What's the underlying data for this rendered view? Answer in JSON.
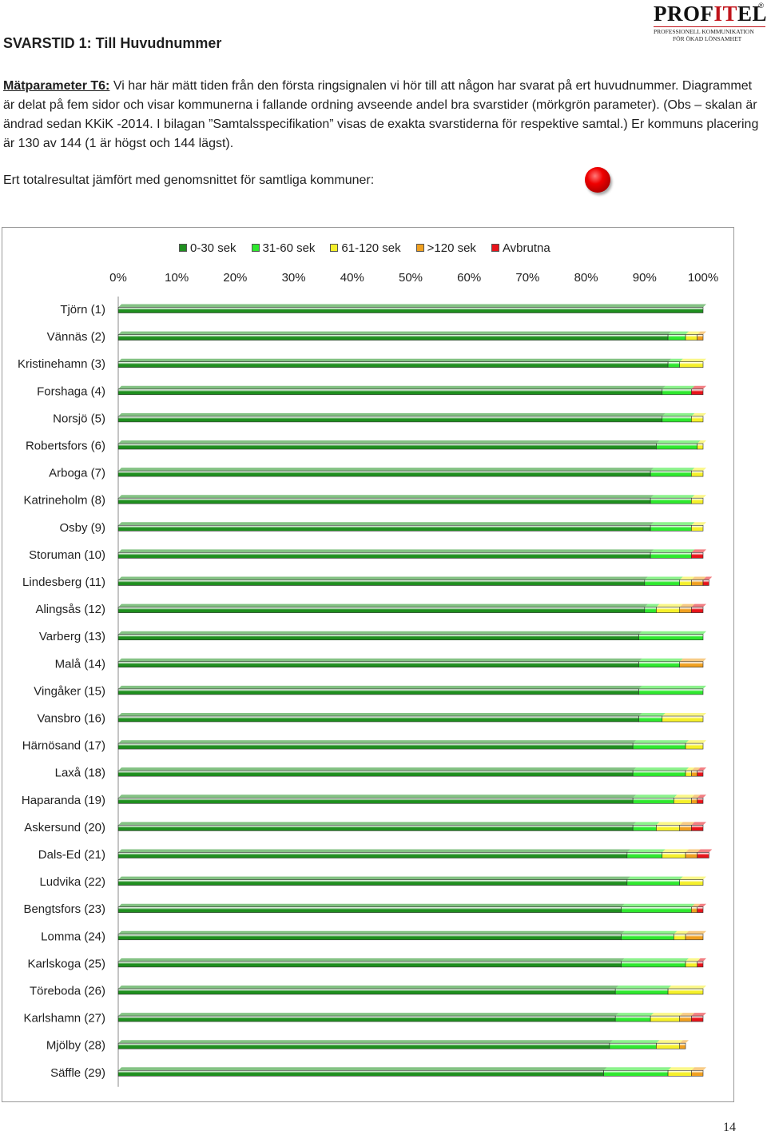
{
  "header": {
    "title": "SVARSTID 1: Till Huvudnummer"
  },
  "logo": {
    "part1": "PROF",
    "part2": "IT",
    "part3": "EL",
    "registered": "®",
    "tagline1": "PROFESSIONELL KOMMUNIKATION",
    "tagline2": "FÖR ÖKAD LÖNSAMHET"
  },
  "intro": {
    "param_label": "Mätparameter T6:",
    "text": " Vi har här mätt tiden från den första ringsignalen vi hör till att någon har svarat på ert huvudnummer. Diagrammet är delat på fem sidor och visar kommunerna i fallande ordning avseende andel bra svarstider (mörkgrön parameter). (Obs – skalan är ändrad sedan KKiK -2014. I bilagan ”Samtalsspecifikation” visas de exakta svarstiderna för respektive samtal.) Er kommuns placering är 130 av 144 (1 är högst och 144 lägst)."
  },
  "total_result": {
    "label": "Ert totalresultat jämfört med genomsnittet för samtliga kommuner:",
    "status_color": "#e00000"
  },
  "page_number": "14",
  "chart_data": {
    "type": "bar",
    "orientation": "horizontal",
    "stacked": true,
    "xlim": [
      0,
      100
    ],
    "x_ticks": [
      "0%",
      "10%",
      "20%",
      "30%",
      "40%",
      "50%",
      "60%",
      "70%",
      "80%",
      "90%",
      "100%"
    ],
    "legend_position": "top",
    "categories": [
      "Tjörn (1)",
      "Vännäs (2)",
      "Kristinehamn (3)",
      "Forshaga (4)",
      "Norsjö (5)",
      "Robertsfors (6)",
      "Arboga  (7)",
      "Katrineholm (8)",
      "Osby (9)",
      "Storuman (10)",
      "Lindesberg (11)",
      "Alingsås  (12)",
      "Varberg (13)",
      "Malå  (14)",
      "Vingåker (15)",
      "Vansbro (16)",
      "Härnösand (17)",
      "Laxå  (18)",
      "Haparanda (19)",
      "Askersund (20)",
      "Dals-Ed (21)",
      "Ludvika (22)",
      "Bengtsfors (23)",
      "Lomma  (24)",
      "Karlskoga (25)",
      "Töreboda (26)",
      "Karlshamn (27)",
      "Mjölby (28)",
      "Säffle (29)"
    ],
    "series": [
      {
        "name": "0-30 sek",
        "color": "#1f8f1f",
        "values": [
          100,
          94,
          94,
          93,
          93,
          92,
          91,
          91,
          91,
          91,
          90,
          90,
          89,
          89,
          89,
          89,
          88,
          88,
          88,
          88,
          87,
          87,
          86,
          86,
          86,
          85,
          85,
          84,
          83
        ]
      },
      {
        "name": "31-60 sek",
        "color": "#2ee82e",
        "values": [
          0,
          3,
          2,
          5,
          5,
          7,
          7,
          7,
          7,
          7,
          6,
          2,
          11,
          7,
          11,
          4,
          9,
          9,
          7,
          4,
          6,
          9,
          12,
          9,
          11,
          9,
          6,
          8,
          11
        ]
      },
      {
        "name": "61-120 sek",
        "color": "#f5f02a",
        "values": [
          0,
          2,
          4,
          0,
          2,
          1,
          2,
          2,
          2,
          0,
          2,
          4,
          0,
          0,
          0,
          7,
          3,
          1,
          3,
          4,
          4,
          4,
          0,
          2,
          2,
          6,
          5,
          4,
          4
        ]
      },
      {
        "name": ">120 sek",
        "color": "#f0a020",
        "values": [
          0,
          1,
          0,
          0,
          0,
          0,
          0,
          0,
          0,
          0,
          2,
          2,
          0,
          4,
          0,
          0,
          0,
          1,
          1,
          2,
          2,
          0,
          1,
          3,
          0,
          0,
          2,
          1,
          2
        ]
      },
      {
        "name": "Avbrutna",
        "color": "#e8141b",
        "values": [
          0,
          0,
          0,
          2,
          0,
          0,
          0,
          0,
          0,
          2,
          1,
          2,
          0,
          0,
          0,
          0,
          0,
          1,
          1,
          2,
          2,
          0,
          1,
          0,
          1,
          0,
          2,
          0,
          0
        ]
      }
    ]
  }
}
